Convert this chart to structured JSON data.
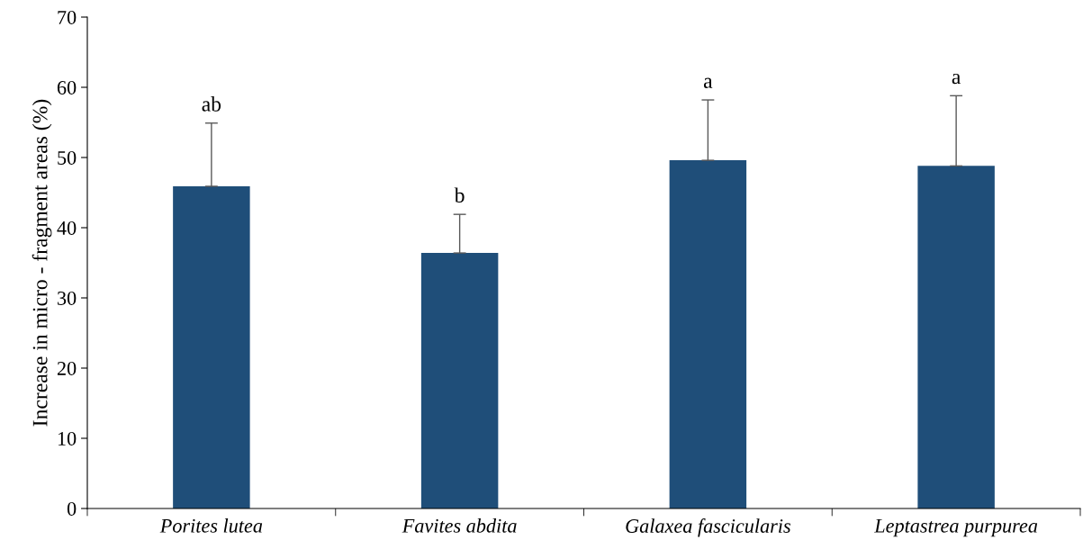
{
  "chart_data": {
    "type": "bar",
    "ylabel": "Increase in micro - fragment areas (%)",
    "categories": [
      "Porites lutea",
      "Favites abdita",
      "Galaxea fascicularis",
      "Leptastrea purpurea"
    ],
    "values": [
      45.9,
      36.4,
      49.6,
      48.8
    ],
    "errors": [
      [
        45.9,
        54.9
      ],
      [
        36.4,
        41.9
      ],
      [
        49.6,
        58.2
      ],
      [
        48.8,
        58.8
      ]
    ],
    "color": "#1f4e79",
    "ylim": [
      0,
      70
    ],
    "yticks": [
      0,
      10,
      20,
      30,
      40,
      50,
      60,
      70
    ],
    "grid": false,
    "annotations": [
      {
        "text": "ab",
        "x": "Porites lutea",
        "y": 54.9
      },
      {
        "text": "b",
        "x": "Favites abdita",
        "y": 41.9
      },
      {
        "text": "a",
        "x": "Galaxea fascicularis",
        "y": 58.2
      },
      {
        "text": "a",
        "x": "Leptastrea purpurea",
        "y": 58.8
      }
    ]
  }
}
